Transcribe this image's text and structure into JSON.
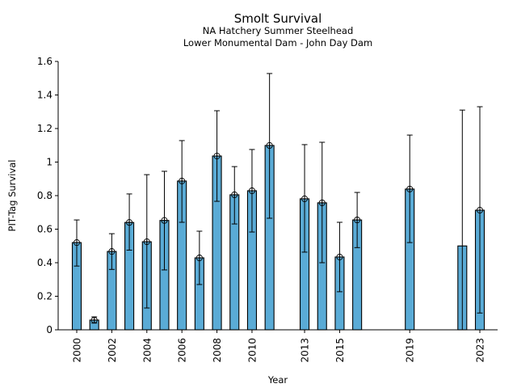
{
  "chart_data": {
    "type": "bar",
    "title": "Smolt Survival",
    "subtitle_lines": [
      "NA Hatchery Summer Steelhead",
      "Lower Monumental Dam - John Day Dam"
    ],
    "xlabel": "Year",
    "ylabel": "PIT-Tag Survival",
    "ylim": [
      0,
      1.6
    ],
    "xlim": [
      1999.4,
      2024
    ],
    "yticks": [
      0,
      0.2,
      0.4,
      0.6,
      0.8,
      1,
      1.2,
      1.4,
      1.6
    ],
    "ytick_labels": [
      "0",
      "0.2",
      "0.4",
      "0.6",
      "0.8",
      "1",
      "1.2",
      "1.4",
      "1.6"
    ],
    "xticks": [
      2000,
      2002,
      2004,
      2006,
      2008,
      2010,
      2013,
      2015,
      2019,
      2023
    ],
    "xtick_labels": [
      "2000",
      "2002",
      "2004",
      "2006",
      "2008",
      "2010",
      "2013",
      "2015",
      "2019",
      "2023"
    ],
    "bar_color": "#5aabd6",
    "grid": false,
    "legend": "none",
    "series": [
      {
        "name": "PIT-Tag Survival",
        "points": [
          {
            "year": 2000,
            "value": 0.52,
            "lower": 0.38,
            "upper": 0.655,
            "marker": true
          },
          {
            "year": 2001,
            "value": 0.058,
            "lower": 0.04,
            "upper": 0.077,
            "marker": true
          },
          {
            "year": 2002,
            "value": 0.467,
            "lower": 0.36,
            "upper": 0.573,
            "marker": true
          },
          {
            "year": 2003,
            "value": 0.64,
            "lower": 0.475,
            "upper": 0.81,
            "marker": true
          },
          {
            "year": 2004,
            "value": 0.525,
            "lower": 0.13,
            "upper": 0.925,
            "marker": true
          },
          {
            "year": 2005,
            "value": 0.652,
            "lower": 0.357,
            "upper": 0.945,
            "marker": true
          },
          {
            "year": 2006,
            "value": 0.887,
            "lower": 0.641,
            "upper": 1.128,
            "marker": true
          },
          {
            "year": 2007,
            "value": 0.429,
            "lower": 0.27,
            "upper": 0.588,
            "marker": true
          },
          {
            "year": 2008,
            "value": 1.036,
            "lower": 0.766,
            "upper": 1.306,
            "marker": true
          },
          {
            "year": 2009,
            "value": 0.805,
            "lower": 0.631,
            "upper": 0.973,
            "marker": true
          },
          {
            "year": 2010,
            "value": 0.829,
            "lower": 0.583,
            "upper": 1.075,
            "marker": true
          },
          {
            "year": 2011,
            "value": 1.099,
            "lower": 0.665,
            "upper": 1.528,
            "marker": true
          },
          {
            "year": 2013,
            "value": 0.781,
            "lower": 0.463,
            "upper": 1.104,
            "marker": true
          },
          {
            "year": 2014,
            "value": 0.757,
            "lower": 0.4,
            "upper": 1.118,
            "marker": true
          },
          {
            "year": 2015,
            "value": 0.434,
            "lower": 0.227,
            "upper": 0.641,
            "marker": true
          },
          {
            "year": 2016,
            "value": 0.655,
            "lower": 0.49,
            "upper": 0.819,
            "marker": true
          },
          {
            "year": 2019,
            "value": 0.839,
            "lower": 0.52,
            "upper": 1.161,
            "marker": true
          },
          {
            "year": 2022,
            "value": 0.5,
            "lower": 0.0,
            "upper": 1.31,
            "marker": false
          },
          {
            "year": 2023,
            "value": 0.713,
            "lower": 0.1,
            "upper": 1.33,
            "marker": true
          }
        ]
      }
    ]
  }
}
